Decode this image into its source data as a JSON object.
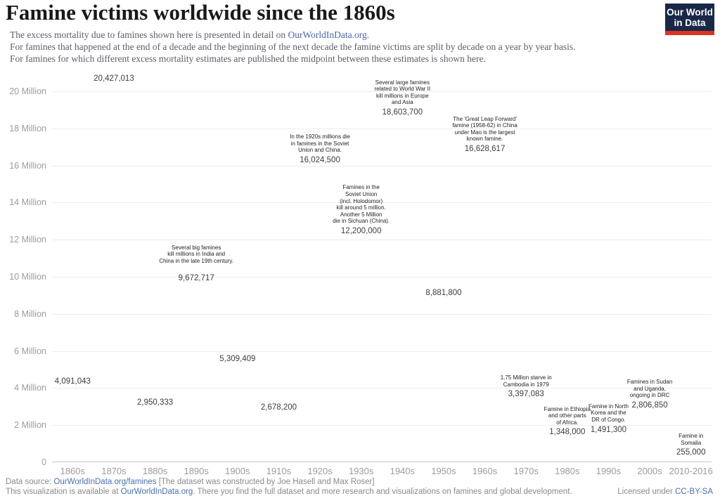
{
  "header": {
    "title": "Famine victims worldwide since the 1860s",
    "subtitle_line1_prefix": "The excess mortality due to famines shown here is presented in detail on ",
    "subtitle_line1_link": "OurWorldInData.org",
    "subtitle_line1_suffix": ".",
    "subtitle_line2": "For famines that happened at the end of a decade and the beginning of the next decade the famine victims are split by decade on a year by year basis.",
    "subtitle_line3": "For famines for which different excess mortality estimates are published the midpoint between these estimates is shown here.",
    "logo": {
      "line1": "Our World",
      "line2": "in Data"
    }
  },
  "chart_data": {
    "type": "bar",
    "title": "Famine victims worldwide since the 1860s",
    "xlabel": "",
    "ylabel": "",
    "ylim": [
      0,
      20000000
    ],
    "ytick_interval": 2000000,
    "ytick_labels": [
      "0",
      "2 Million",
      "4 Million",
      "6 Million",
      "8 Million",
      "10 Million",
      "12 Million",
      "14 Million",
      "16 Million",
      "18 Million",
      "20 Million"
    ],
    "grid": true,
    "legend": "none",
    "categories": [
      "1860s",
      "1870s",
      "1880s",
      "1890s",
      "1900s",
      "1910s",
      "1920s",
      "1930s",
      "1940s",
      "1950s",
      "1960s",
      "1970s",
      "1980s",
      "1990s",
      "2000s",
      "2010-2016"
    ],
    "values": [
      4091043,
      20427013,
      2950333,
      9672717,
      5309409,
      2678200,
      16024500,
      12200000,
      18603700,
      8881800,
      16628617,
      3397083,
      1348000,
      1491300,
      2806850,
      255000
    ],
    "value_labels": [
      "4,091,043",
      "20,427,013",
      "2,950,333",
      "9,672,717",
      "5,309,409",
      "2,678,200",
      "16,024,500",
      "12,200,000",
      "18,603,700",
      "8,881,800",
      "16,628,617",
      "3,397,083",
      "1,348,000",
      "1,491,300",
      "2,806,850",
      "255,000"
    ],
    "annotations": [
      {
        "index": 3,
        "category": "1890s",
        "lines": [
          "Several big famines",
          "kill millions in India and",
          "China in the late 19th century."
        ]
      },
      {
        "index": 6,
        "category": "1920s",
        "lines": [
          "In the 1920s millions die",
          "in famines in the Soviet",
          "Union and China."
        ]
      },
      {
        "index": 7,
        "category": "1930s",
        "lines": [
          "Famines in the",
          "Soviet Union",
          "(incl. Holodomor)",
          "kill around 5 million.",
          "Another 5 Million",
          "die in Sichuan (China)."
        ]
      },
      {
        "index": 8,
        "category": "1940s",
        "lines": [
          "Several large famines",
          "related to World War II",
          "kill millions in Europe",
          "and Asia"
        ]
      },
      {
        "index": 10,
        "category": "1960s",
        "lines": [
          "The 'Great Leap Forward'",
          "famine (1958-62) in China",
          "under Mao is the largest",
          "known famine."
        ]
      },
      {
        "index": 11,
        "category": "1970s",
        "lines": [
          "1.75 Million starve in",
          "Cambodia in 1979"
        ]
      },
      {
        "index": 12,
        "category": "1980s",
        "lines": [
          "Famine in Ethiopia",
          "and other parts",
          "of Africa."
        ]
      },
      {
        "index": 13,
        "category": "1990s",
        "lines": [
          "Famine in North",
          "Korea and the",
          "DR of Congo."
        ]
      },
      {
        "index": 14,
        "category": "2000s",
        "lines": [
          "Famines in Sudan",
          "and Uganda,",
          "ongoing in DRC"
        ]
      },
      {
        "index": 15,
        "category": "2010-2016",
        "lines": [
          "Famine in",
          "Somalia"
        ]
      }
    ]
  },
  "colors": {
    "bar": "#232c4e",
    "logo_bg": "#1a2848",
    "logo_red": "#dc3325",
    "link": "#4a66a6"
  },
  "footer": {
    "line1_prefix": "Data source: ",
    "line1_link": "OurWorldInData.org/famines",
    "line1_suffix": " [The dataset was constructed by Joe Hasell and Max Roser]",
    "line2_prefix": "This visualization is available at ",
    "line2_link": "OurWorldInData.org",
    "line2_suffix": ". There you find the full dataset and more research and visualizations on famines and global development.",
    "license_prefix": "Licensed under ",
    "license_link": "CC-BY-SA"
  }
}
